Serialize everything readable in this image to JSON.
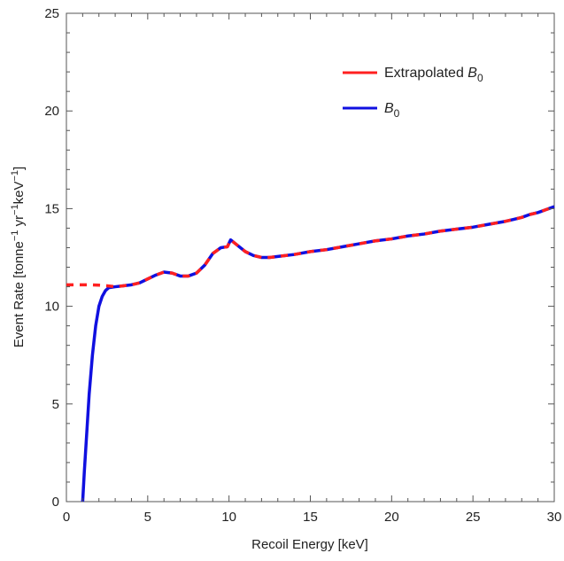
{
  "chart_data": {
    "type": "line",
    "xlabel": "Recoil Energy [keV]",
    "ylabel": {
      "base": "Event Rate [tonne",
      "sup1": "−1",
      "mid1": " yr",
      "sup2": "−1",
      "mid2": "keV",
      "sup3": "−1",
      "end": "]"
    },
    "xlim": [
      0,
      30
    ],
    "ylim": [
      0,
      25
    ],
    "xticks": [
      0,
      5,
      10,
      15,
      20,
      25,
      30
    ],
    "yticks": [
      0,
      5,
      10,
      15,
      20,
      25
    ],
    "xtick_labels": [
      "0",
      "5",
      "10",
      "15",
      "20",
      "25",
      "30"
    ],
    "ytick_labels": [
      "0",
      "5",
      "10",
      "15",
      "20",
      "25"
    ],
    "grid": false,
    "legend_position": "top-right",
    "series": [
      {
        "name": "Extrapolated B0",
        "legend_label": {
          "text": "Extrapolated ",
          "sym": "B",
          "sub": "0"
        },
        "color": "#ff2020",
        "style": "dashed",
        "x": [
          0,
          0.5,
          1,
          1.5,
          2,
          2.5,
          3,
          3.5,
          4,
          4.5,
          5,
          5.5,
          6,
          6.5,
          7,
          7.5,
          8,
          8.5,
          9,
          9.5,
          9.9,
          10.1,
          10.4,
          11,
          11.5,
          12,
          12.5,
          13,
          14,
          15,
          16,
          17,
          18,
          19,
          20,
          21,
          22,
          23,
          24,
          25,
          26,
          27,
          27.5,
          28,
          28.5,
          29,
          29.5,
          30
        ],
        "y": [
          11.1,
          11.1,
          11.1,
          11.1,
          11.08,
          11.05,
          11.0,
          11.05,
          11.1,
          11.2,
          11.4,
          11.6,
          11.75,
          11.7,
          11.55,
          11.55,
          11.7,
          12.1,
          12.7,
          13.0,
          13.05,
          13.4,
          13.2,
          12.8,
          12.6,
          12.5,
          12.5,
          12.55,
          12.65,
          12.8,
          12.9,
          13.05,
          13.2,
          13.35,
          13.45,
          13.6,
          13.7,
          13.85,
          13.95,
          14.05,
          14.2,
          14.35,
          14.45,
          14.55,
          14.7,
          14.8,
          14.95,
          15.1
        ]
      },
      {
        "name": "B0",
        "legend_label": {
          "text": "",
          "sym": "B",
          "sub": "0"
        },
        "color": "#1010e0",
        "style": "solid",
        "x": [
          1.0,
          1.1,
          1.25,
          1.4,
          1.6,
          1.8,
          2.0,
          2.2,
          2.4,
          2.6,
          3,
          3.5,
          4,
          4.5,
          5,
          5.5,
          6,
          6.5,
          7,
          7.5,
          8,
          8.5,
          9,
          9.5,
          9.9,
          10.1,
          10.4,
          11,
          11.5,
          12,
          12.5,
          13,
          14,
          15,
          16,
          17,
          18,
          19,
          20,
          21,
          22,
          23,
          24,
          25,
          26,
          27,
          27.5,
          28,
          28.5,
          29,
          29.5,
          30
        ],
        "y": [
          0,
          1.5,
          3.5,
          5.5,
          7.5,
          9.0,
          10.0,
          10.5,
          10.8,
          10.95,
          11.0,
          11.05,
          11.1,
          11.2,
          11.4,
          11.6,
          11.75,
          11.7,
          11.55,
          11.55,
          11.7,
          12.1,
          12.7,
          13.0,
          13.05,
          13.4,
          13.2,
          12.8,
          12.6,
          12.5,
          12.5,
          12.55,
          12.65,
          12.8,
          12.9,
          13.05,
          13.2,
          13.35,
          13.45,
          13.6,
          13.7,
          13.85,
          13.95,
          14.05,
          14.2,
          14.35,
          14.45,
          14.55,
          14.7,
          14.8,
          14.95,
          15.1
        ]
      }
    ]
  }
}
